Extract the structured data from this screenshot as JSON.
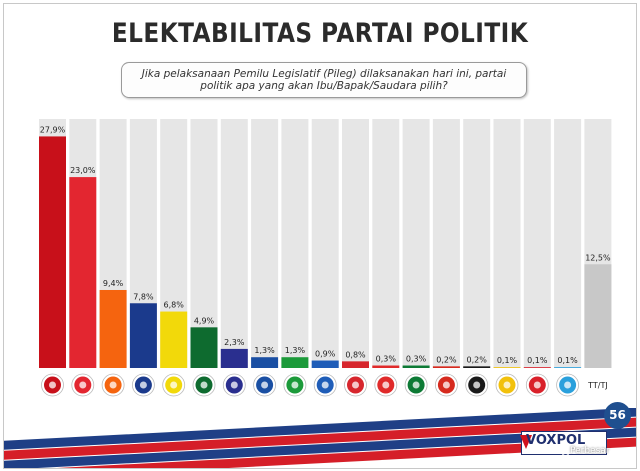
{
  "title": "ELEKTABILITAS  PARTAI POLITIK",
  "question": "Jika pelaksanaan Pemilu Legislatif (Pileg) dilaksanakan hari ini, partai politik apa yang akan Ibu/Bapak/Saudara pilih?",
  "page_number": "56",
  "brand": "VOXPOL",
  "watermark": "Perbesar",
  "chart_data": {
    "type": "bar",
    "title": "ELEKTABILITAS  PARTAI POLITIK",
    "xlabel": "",
    "ylabel": "",
    "ylim": [
      0,
      30
    ],
    "grid": false,
    "categories": [
      "",
      "",
      "",
      "",
      "",
      "",
      "",
      "",
      "",
      "",
      "",
      "",
      "",
      "",
      "",
      "",
      "",
      "",
      "TT/TJ"
    ],
    "values": [
      27.9,
      23.0,
      9.4,
      7.8,
      6.8,
      4.9,
      2.3,
      1.3,
      1.3,
      0.9,
      0.8,
      0.3,
      0.3,
      0.2,
      0.2,
      0.1,
      0.1,
      0.1,
      12.5
    ],
    "labels": [
      "27,9%",
      "23,0%",
      "9,4%",
      "7,8%",
      "6,8%",
      "4,9%",
      "2,3%",
      "1,3%",
      "1,3%",
      "0,9%",
      "0,8%",
      "0,3%",
      "0,3%",
      "0,2%",
      "0,2%",
      "0,1%",
      "0,1%",
      "0,1%",
      "12,5%"
    ],
    "colors": [
      "#c8101a",
      "#e32630",
      "#f5640f",
      "#1b3a8c",
      "#f2d90a",
      "#0e6b2f",
      "#2a2f8f",
      "#1a4fa3",
      "#1c9a3a",
      "#1f5db8",
      "#d7262d",
      "#e02a2a",
      "#0d7a35",
      "#d62a1e",
      "#1a1a1a",
      "#f2c10c",
      "#d9202a",
      "#2aa0dc",
      "#c8c8c8"
    ],
    "logo_icons": [
      "gerindra-garuda-icon",
      "pdip-bull-icon",
      "pkb-emblem-icon",
      "nasdem-emblem-icon",
      "golkar-tree-icon",
      "ppp-kaaba-icon",
      "demokrat-star-icon",
      "perindo-emblem-icon",
      "hanura-emblem-icon",
      "pan-sun-icon",
      "berkarya-emblem-icon",
      "psi-rose-icon",
      "pbb-crescent-icon",
      "garuda-party-icon",
      "pkpi-star-icon",
      "pkp-emblem-icon",
      "pks-emblem-icon",
      "partai-emblem-icon",
      ""
    ]
  }
}
